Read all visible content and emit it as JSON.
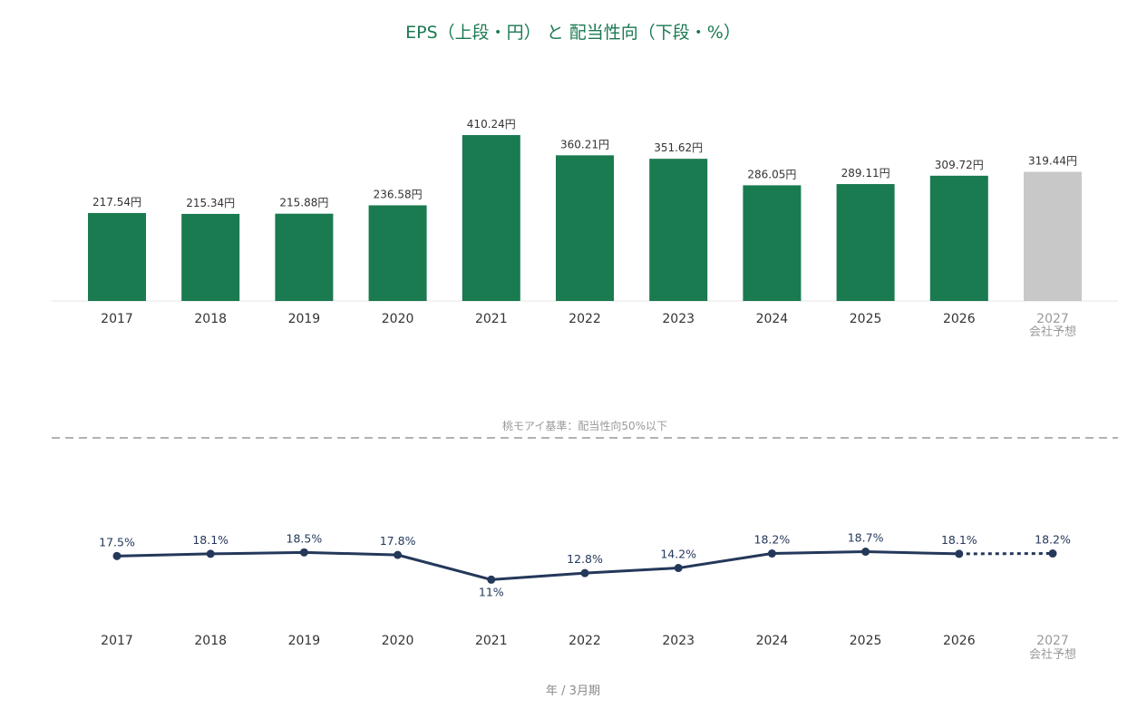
{
  "title": "EPS（上段・円） と 配当性向（下段・%）",
  "footer_label": "年 / 3月期",
  "colors": {
    "title": "#1a7a50",
    "bar_actual": "#1a7a50",
    "bar_forecast": "#c8c8c8",
    "line": "#24385a",
    "threshold": "#999999",
    "forecast_text": "#9a9a9a"
  },
  "chart_data": [
    {
      "type": "bar",
      "categories": [
        "2017",
        "2018",
        "2019",
        "2020",
        "2021",
        "2022",
        "2023",
        "2024",
        "2025",
        "2026",
        "2027"
      ],
      "forecast_index": 10,
      "forecast_note": "会社予想",
      "series": [
        {
          "values": [
            217.54,
            215.34,
            215.88,
            236.58,
            410.24,
            360.21,
            351.62,
            286.05,
            289.11,
            309.72,
            319.44
          ],
          "labels": [
            "217.54円",
            "215.34円",
            "215.88円",
            "236.58円",
            "410.24円",
            "360.21円",
            "351.62円",
            "286.05円",
            "289.11円",
            "309.72円",
            "319.44円"
          ]
        }
      ],
      "ylim": [
        0,
        410.24
      ],
      "grid": false,
      "legend": "none"
    },
    {
      "type": "line",
      "categories": [
        "2017",
        "2018",
        "2019",
        "2020",
        "2021",
        "2022",
        "2023",
        "2024",
        "2025",
        "2026",
        "2027"
      ],
      "forecast_index": 10,
      "forecast_note": "会社予想",
      "series": [
        {
          "values": [
            17.5,
            18.1,
            18.5,
            17.8,
            11,
            12.8,
            14.2,
            18.2,
            18.7,
            18.1,
            18.2
          ],
          "labels": [
            "17.5%",
            "18.1%",
            "18.5%",
            "17.8%",
            "11%",
            "12.8%",
            "14.2%",
            "18.2%",
            "18.7%",
            "18.1%",
            "18.2%"
          ]
        }
      ],
      "threshold": {
        "value": 50,
        "label": "桃モアイ基準：配当性向50%以下",
        "style": "dashed"
      },
      "ylim": [
        0,
        50
      ],
      "grid": false,
      "legend": "none"
    }
  ]
}
